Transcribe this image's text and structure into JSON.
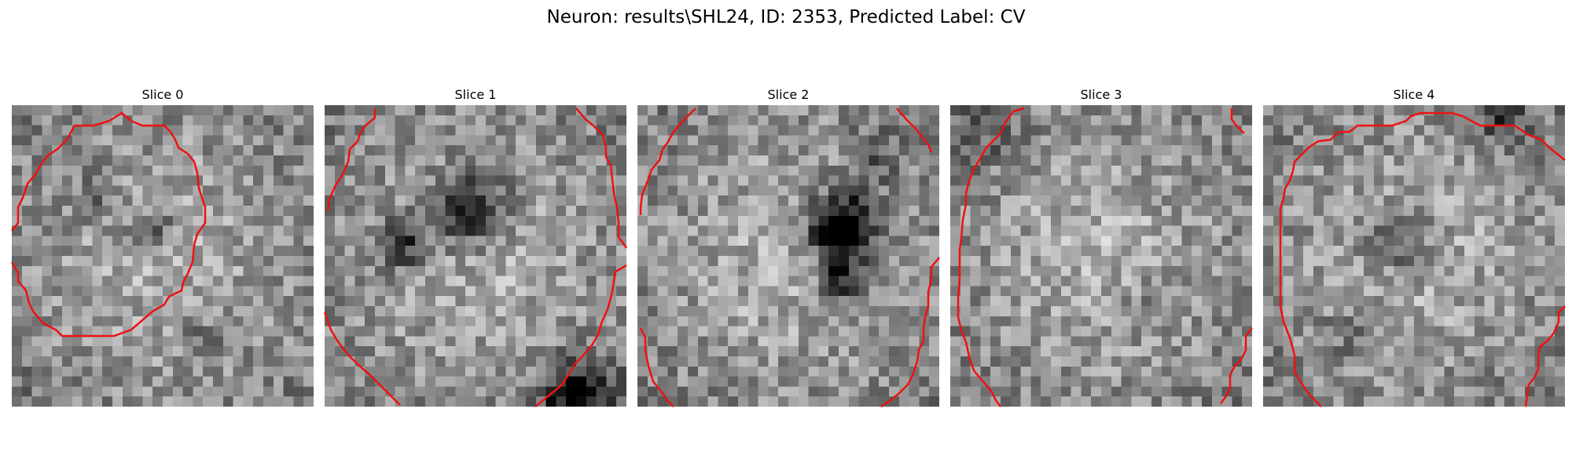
{
  "figure": {
    "title": "Neuron: results\\SHL24, ID: 2353, Predicted Label: CV"
  },
  "panels": [
    {
      "label": "Slice 0",
      "seed": 11,
      "dark_spots": [
        [
          0.47,
          0.42,
          0.06,
          0.25
        ],
        [
          0.28,
          0.3,
          0.06,
          0.2
        ],
        [
          0.62,
          0.78,
          0.05,
          0.18
        ]
      ]
    },
    {
      "label": "Slice 1",
      "seed": 23,
      "dark_spots": [
        [
          0.48,
          0.35,
          0.09,
          0.5
        ],
        [
          0.25,
          0.46,
          0.06,
          0.45
        ],
        [
          0.83,
          0.96,
          0.08,
          0.55
        ]
      ]
    },
    {
      "label": "Slice 2",
      "seed": 37,
      "dark_spots": [
        [
          0.68,
          0.41,
          0.08,
          0.8
        ],
        [
          0.68,
          0.58,
          0.05,
          0.45
        ],
        [
          0.78,
          0.18,
          0.06,
          0.25
        ]
      ]
    },
    {
      "label": "Slice 3",
      "seed": 51,
      "dark_spots": [
        [
          0.65,
          0.65,
          0.07,
          0.1
        ],
        [
          0.1,
          0.1,
          0.08,
          0.15
        ]
      ]
    },
    {
      "label": "Slice 4",
      "seed": 67,
      "dark_spots": [
        [
          0.45,
          0.45,
          0.08,
          0.3
        ],
        [
          0.3,
          0.75,
          0.06,
          0.15
        ],
        [
          0.8,
          0.05,
          0.05,
          0.35
        ]
      ]
    }
  ],
  "contour_color": "#ee1111"
}
